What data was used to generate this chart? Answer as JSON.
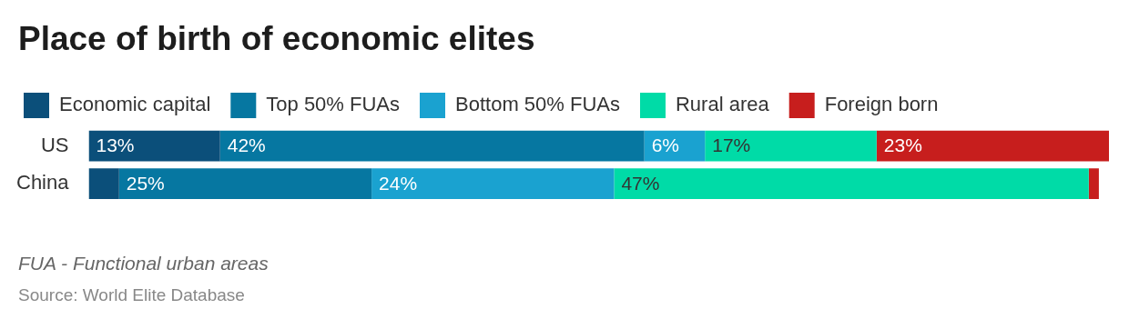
{
  "chart_data": {
    "type": "bar",
    "orientation": "horizontal",
    "stacked": true,
    "title": "Place of birth of economic elites",
    "categories": [
      "US",
      "China"
    ],
    "xlim": [
      0,
      101
    ],
    "legend": "top left",
    "series": [
      {
        "name": "Economic capital",
        "color": "#0b4f7a",
        "values": [
          13,
          3
        ],
        "value_labels": [
          "13%",
          null
        ]
      },
      {
        "name": "Top 50% FUAs",
        "color": "#0677a1",
        "values": [
          42,
          25
        ],
        "value_labels": [
          "42%",
          "25%"
        ]
      },
      {
        "name": "Bottom 50% FUAs",
        "color": "#1aa2d0",
        "values": [
          6,
          24
        ],
        "value_labels": [
          "6%",
          "24%"
        ]
      },
      {
        "name": "Rural area",
        "color": "#00dba7",
        "values": [
          17,
          47
        ],
        "value_labels": [
          "17%",
          "47%"
        ]
      },
      {
        "name": "Foreign born",
        "color": "#c71e1d",
        "values": [
          23,
          1
        ],
        "value_labels": [
          "23%",
          null
        ]
      }
    ],
    "annotations": [
      "FUA - Functional urban areas",
      "Source: World Elite Database"
    ]
  }
}
